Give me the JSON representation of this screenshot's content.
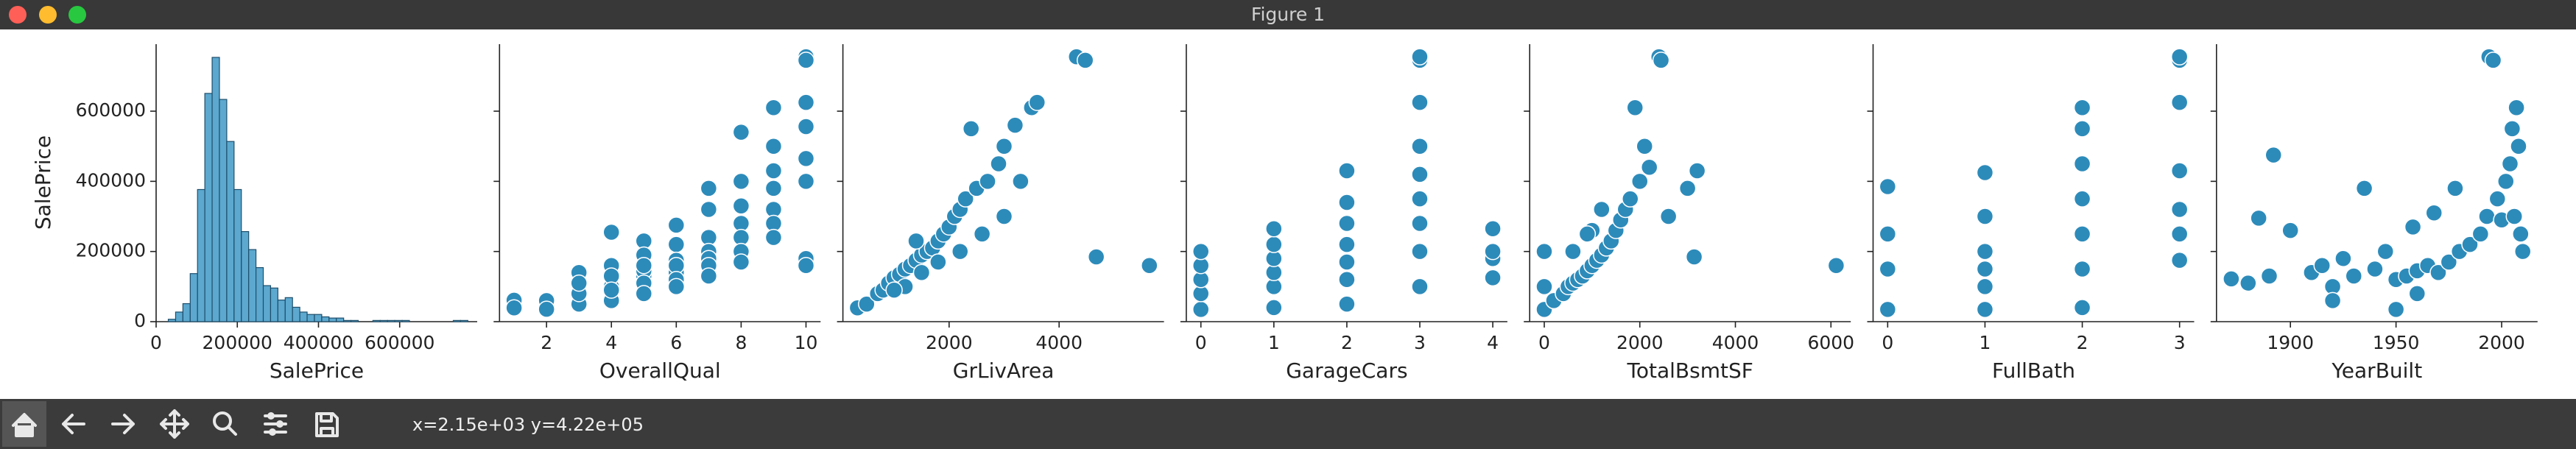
{
  "window": {
    "title": "Figure 1"
  },
  "toolbar": {
    "status": "x=2.15e+03 y=4.22e+05"
  },
  "y_axis": {
    "label": "SalePrice",
    "ylim": [
      0,
      791000
    ],
    "yticks": [
      0,
      200000,
      400000,
      600000
    ]
  },
  "chart_data": [
    {
      "type": "histogram",
      "xlabel": "SalePrice",
      "color": "#5ca8cf",
      "edgecolor": "#1f4e6b",
      "xlim": [
        0,
        791000
      ],
      "xticks": [
        0,
        200000,
        400000,
        600000
      ],
      "count_lim": [
        0,
        231
      ],
      "bins": [
        30000,
        48000,
        66000,
        84000,
        102000,
        120000,
        138000,
        156000,
        174000,
        192000,
        210000,
        228000,
        246000,
        264000,
        282000,
        300000,
        318000,
        336000,
        354000,
        372000,
        390000,
        408000,
        426000,
        444000,
        462000,
        480000,
        498000,
        516000,
        534000,
        552000,
        570000,
        588000,
        606000,
        624000,
        642000,
        660000,
        678000,
        696000,
        714000,
        732000,
        750000,
        768000
      ],
      "values": [
        2,
        8,
        15,
        40,
        110,
        190,
        220,
        185,
        150,
        110,
        75,
        60,
        45,
        30,
        28,
        18,
        20,
        12,
        8,
        6,
        6,
        4,
        3,
        3,
        1,
        1,
        0,
        0,
        1,
        1,
        1,
        1,
        1,
        0,
        0,
        0,
        0,
        0,
        0,
        1,
        1
      ]
    },
    {
      "type": "scatter",
      "xlabel": "OverallQual",
      "color": "#2d8bba",
      "xlim": [
        0.55,
        10.45
      ],
      "xticks": [
        2,
        4,
        6,
        8,
        10
      ],
      "x": [
        1,
        1,
        2,
        2,
        3,
        3,
        3,
        3,
        4,
        4,
        4,
        4,
        4,
        4,
        5,
        5,
        5,
        5,
        5,
        5,
        5,
        6,
        6,
        6,
        6,
        6,
        6,
        6,
        7,
        7,
        7,
        7,
        7,
        7,
        7,
        8,
        8,
        8,
        8,
        8,
        8,
        8,
        9,
        9,
        9,
        9,
        9,
        9,
        9,
        10,
        10,
        10,
        10,
        10,
        10,
        10,
        10
      ],
      "values": [
        61000,
        39300,
        60000,
        35300,
        140000,
        50000,
        80000,
        110000,
        255000,
        160000,
        100000,
        130000,
        60000,
        90000,
        230000,
        190000,
        130000,
        145000,
        110000,
        80000,
        160000,
        275000,
        220000,
        175000,
        140000,
        160000,
        120000,
        100000,
        380000,
        320000,
        240000,
        200000,
        180000,
        160000,
        130000,
        540000,
        400000,
        330000,
        280000,
        240000,
        200000,
        170000,
        610000,
        500000,
        430000,
        380000,
        320000,
        280000,
        240000,
        755000,
        745000,
        625000,
        556000,
        465000,
        400000,
        180000,
        160000
      ]
    },
    {
      "type": "scatter",
      "xlabel": "GrLivArea",
      "color": "#2d8bba",
      "xlim": [
        69,
        5907
      ],
      "xticks": [
        2000,
        4000
      ],
      "x": [
        334,
        500,
        700,
        800,
        900,
        1000,
        1100,
        1200,
        1300,
        1400,
        1500,
        1600,
        1700,
        1800,
        1900,
        2000,
        2100,
        2200,
        2300,
        2500,
        2700,
        2900,
        3000,
        3200,
        3500,
        3600,
        4316,
        4476,
        4676,
        5642,
        1200,
        1500,
        1800,
        2200,
        2600,
        3000,
        1000,
        1400,
        2400,
        3300
      ],
      "values": [
        39300,
        50000,
        80000,
        90000,
        110000,
        125000,
        135000,
        150000,
        160000,
        175000,
        190000,
        200000,
        210000,
        230000,
        250000,
        270000,
        300000,
        320000,
        350000,
        380000,
        400000,
        450000,
        500000,
        560000,
        610000,
        625000,
        755000,
        745000,
        184750,
        160000,
        100000,
        140000,
        170000,
        200000,
        250000,
        300000,
        90000,
        230000,
        550000,
        400000
      ]
    },
    {
      "type": "scatter",
      "xlabel": "GarageCars",
      "color": "#2d8bba",
      "xlim": [
        -0.2,
        4.2
      ],
      "xticks": [
        0,
        1,
        2,
        3,
        4
      ],
      "x": [
        0,
        0,
        0,
        0,
        0,
        1,
        1,
        1,
        1,
        1,
        1,
        2,
        2,
        2,
        2,
        2,
        2,
        2,
        3,
        3,
        3,
        3,
        3,
        3,
        3,
        3,
        3,
        4,
        4,
        4,
        4
      ],
      "values": [
        35000,
        80000,
        120000,
        160000,
        200000,
        40000,
        100000,
        140000,
        180000,
        220000,
        265000,
        50000,
        120000,
        170000,
        220000,
        280000,
        340000,
        430000,
        100000,
        200000,
        280000,
        350000,
        420000,
        500000,
        625000,
        745000,
        755000,
        125000,
        180000,
        200000,
        265000
      ]
    },
    {
      "type": "scatter",
      "xlabel": "TotalBsmtSF",
      "color": "#2d8bba",
      "xlim": [
        -305,
        6415
      ],
      "xticks": [
        0,
        2000,
        4000,
        6000
      ],
      "x": [
        0,
        0,
        0,
        200,
        400,
        500,
        600,
        700,
        800,
        900,
        1000,
        1100,
        1200,
        1300,
        1400,
        1500,
        1600,
        1700,
        1800,
        2000,
        2100,
        2200,
        2400,
        2444,
        2600,
        3000,
        3200,
        3138,
        6110,
        1000,
        1200,
        1900,
        600,
        900
      ],
      "values": [
        35000,
        100000,
        200000,
        60000,
        80000,
        100000,
        110000,
        120000,
        130000,
        145000,
        160000,
        175000,
        190000,
        210000,
        230000,
        260000,
        290000,
        320000,
        350000,
        400000,
        500000,
        440000,
        755000,
        745000,
        300000,
        380000,
        430000,
        184750,
        160000,
        260000,
        320000,
        610000,
        200000,
        250000
      ]
    },
    {
      "type": "scatter",
      "xlabel": "FullBath",
      "color": "#2d8bba",
      "xlim": [
        -0.15,
        3.15
      ],
      "xticks": [
        0,
        1,
        2,
        3
      ],
      "x": [
        0,
        0,
        0,
        0,
        1,
        1,
        1,
        1,
        1,
        1,
        2,
        2,
        2,
        2,
        2,
        2,
        2,
        3,
        3,
        3,
        3,
        3,
        3,
        3
      ],
      "values": [
        35000,
        150000,
        250000,
        385000,
        35000,
        100000,
        150000,
        200000,
        300000,
        425000,
        40000,
        150000,
        250000,
        350000,
        450000,
        550000,
        610000,
        175000,
        250000,
        320000,
        430000,
        625000,
        745000,
        755000
      ]
    },
    {
      "type": "scatter",
      "xlabel": "YearBuilt",
      "color": "#2d8bba",
      "xlim": [
        1865,
        2017
      ],
      "xticks": [
        1900,
        1950,
        2000
      ],
      "x": [
        1872,
        1880,
        1885,
        1890,
        1892,
        1900,
        1910,
        1915,
        1920,
        1925,
        1930,
        1935,
        1940,
        1945,
        1950,
        1955,
        1958,
        1960,
        1965,
        1968,
        1970,
        1975,
        1978,
        1980,
        1985,
        1990,
        1993,
        1994,
        1996,
        1998,
        2000,
        2002,
        2004,
        2005,
        2006,
        2007,
        2008,
        2009,
        2010,
        1960,
        1920,
        1950
      ],
      "values": [
        122000,
        110000,
        295000,
        130000,
        475000,
        260000,
        140000,
        160000,
        100000,
        180000,
        130000,
        380000,
        150000,
        200000,
        120000,
        130000,
        270000,
        145000,
        160000,
        310000,
        140000,
        170000,
        380000,
        200000,
        220000,
        250000,
        300000,
        755000,
        745000,
        350000,
        290000,
        400000,
        450000,
        550000,
        300000,
        610000,
        500000,
        250000,
        200000,
        80000,
        60000,
        35000
      ]
    }
  ]
}
